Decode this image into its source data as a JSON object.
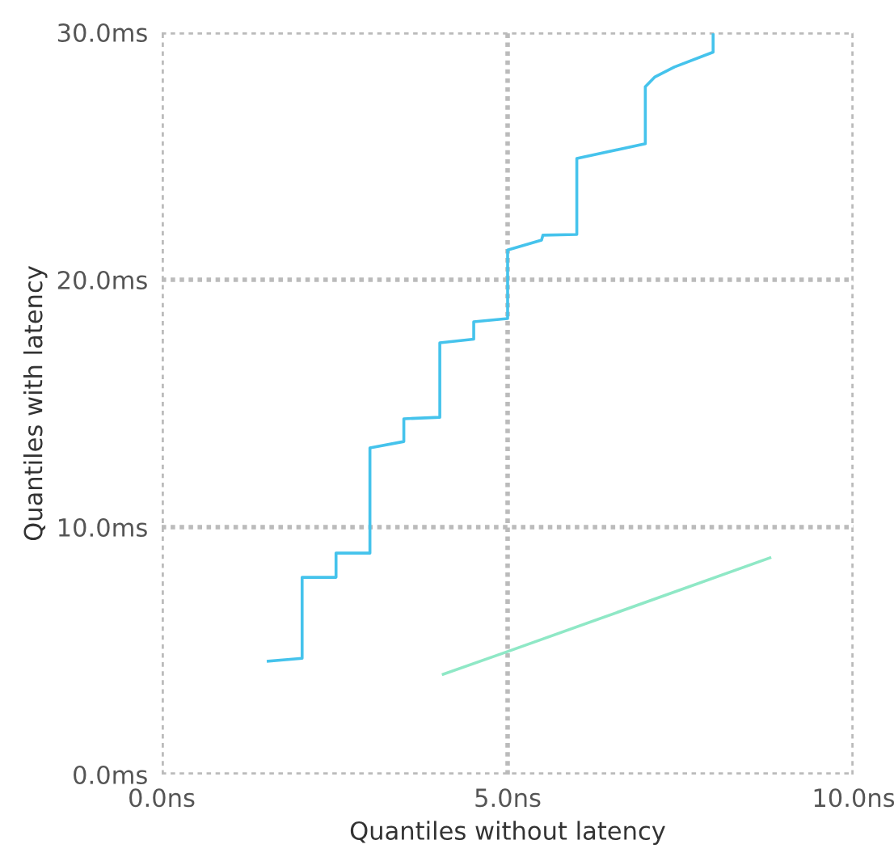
{
  "chart_data": {
    "type": "line",
    "xlabel": "Quantiles without latency",
    "ylabel": "Quantiles with latency",
    "xlim": [
      0,
      10
    ],
    "ylim": [
      0,
      30
    ],
    "xticks": [
      {
        "value": 0,
        "label": "0.0ns"
      },
      {
        "value": 5,
        "label": "5.0ns"
      },
      {
        "value": 10,
        "label": "10.0ns"
      }
    ],
    "yticks": [
      {
        "value": 0,
        "label": "0.0ms"
      },
      {
        "value": 10,
        "label": "10.0ms"
      },
      {
        "value": 20,
        "label": "20.0ms"
      },
      {
        "value": 30,
        "label": "30.0ms"
      }
    ],
    "grid": true,
    "series": [
      {
        "color": "#45c3ec",
        "x": [
          1.54,
          2.03,
          2.03,
          2.52,
          2.52,
          3.01,
          3.01,
          3.5,
          3.5,
          4.02,
          4.02,
          4.51,
          4.51,
          5.0,
          5.0,
          5.49,
          5.51,
          6.0,
          6.0,
          6.99,
          6.99,
          7.13,
          7.41,
          7.97,
          7.97
        ],
        "values": [
          4.58,
          4.7,
          7.97,
          7.97,
          8.95,
          8.95,
          13.2,
          13.46,
          14.38,
          14.44,
          17.45,
          17.6,
          18.3,
          18.43,
          21.2,
          21.6,
          21.8,
          21.83,
          24.9,
          25.5,
          27.8,
          28.2,
          28.6,
          29.2,
          29.9
        ]
      },
      {
        "color": "#8fe8c6",
        "x": [
          4.07,
          5.0,
          8.79
        ],
        "values": [
          4.05,
          4.97,
          8.76
        ]
      }
    ]
  }
}
